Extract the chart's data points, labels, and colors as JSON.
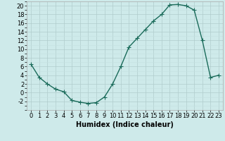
{
  "title": "",
  "xlabel": "Humidex (Indice chaleur)",
  "ylabel": "",
  "x_values": [
    0,
    1,
    2,
    3,
    4,
    5,
    6,
    7,
    8,
    9,
    10,
    11,
    12,
    13,
    14,
    15,
    16,
    17,
    18,
    19,
    20,
    21,
    22,
    23
  ],
  "y_values": [
    6.5,
    3.5,
    2.0,
    0.8,
    0.2,
    -1.8,
    -2.2,
    -2.5,
    -2.3,
    -1.0,
    2.0,
    6.0,
    10.5,
    12.5,
    14.5,
    16.5,
    18.0,
    20.2,
    20.3,
    20.0,
    19.0,
    12.0,
    3.5,
    4.0
  ],
  "line_color": "#1a6b5a",
  "marker": "+",
  "marker_size": 4,
  "bg_color": "#ceeaea",
  "grid_major_color": "#b0cccc",
  "grid_minor_color": "#c4e0e0",
  "ylim": [
    -4,
    21
  ],
  "xlim": [
    -0.5,
    23.5
  ],
  "yticks": [
    -2,
    0,
    2,
    4,
    6,
    8,
    10,
    12,
    14,
    16,
    18,
    20
  ],
  "xticks": [
    0,
    1,
    2,
    3,
    4,
    5,
    6,
    7,
    8,
    9,
    10,
    11,
    12,
    13,
    14,
    15,
    16,
    17,
    18,
    19,
    20,
    21,
    22,
    23
  ],
  "tick_fontsize": 6,
  "xlabel_fontsize": 7,
  "line_width": 1.0,
  "facecolor": "#ceeaea"
}
